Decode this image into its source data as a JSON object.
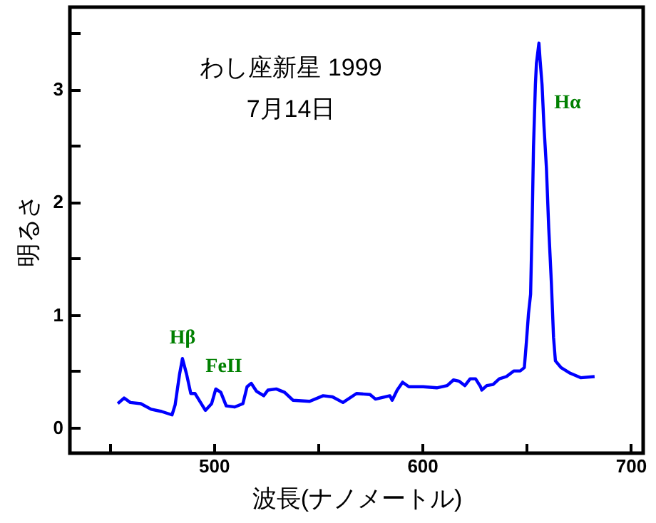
{
  "chart_data": {
    "type": "line",
    "title": "わし座新星 1999",
    "subtitle": "7月14日",
    "xlabel": "波長(ナノメートル)",
    "ylabel": "明るさ",
    "x": [
      454,
      457,
      460,
      465,
      470,
      475,
      480,
      481.5,
      483.6,
      485,
      487,
      489,
      491,
      493,
      496,
      499,
      501,
      503.4,
      506,
      510,
      514,
      516,
      518,
      520.5,
      524,
      526,
      530,
      534,
      538,
      546,
      552.5,
      557,
      562,
      568.5,
      575,
      577.6,
      584.5,
      585.6,
      588,
      590.6,
      593.6,
      600.5,
      607,
      612,
      615,
      617.6,
      620.5,
      623,
      625.6,
      628,
      628.6,
      631,
      634,
      637,
      640.4,
      644,
      647,
      649,
      650,
      651,
      652,
      652.7,
      653.4,
      654.3,
      654.8,
      656,
      656.6,
      657.5,
      658.4,
      659.6,
      660.7,
      662,
      663,
      663.9,
      666.6,
      671,
      676,
      682.7
    ],
    "series": [
      {
        "color": "#0000ff",
        "values": [
          0.21,
          0.26,
          0.22,
          0.21,
          0.16,
          0.14,
          0.11,
          0.2,
          0.47,
          0.61,
          0.47,
          0.3,
          0.3,
          0.24,
          0.15,
          0.21,
          0.34,
          0.31,
          0.19,
          0.18,
          0.21,
          0.36,
          0.39,
          0.32,
          0.28,
          0.33,
          0.34,
          0.31,
          0.24,
          0.23,
          0.28,
          0.27,
          0.22,
          0.3,
          0.29,
          0.25,
          0.28,
          0.24,
          0.33,
          0.4,
          0.36,
          0.36,
          0.35,
          0.37,
          0.42,
          0.41,
          0.37,
          0.43,
          0.43,
          0.36,
          0.33,
          0.37,
          0.38,
          0.43,
          0.45,
          0.5,
          0.5,
          0.53,
          0.76,
          1.01,
          1.18,
          1.77,
          2.49,
          3.04,
          3.23,
          3.41,
          3.25,
          3.04,
          2.68,
          2.3,
          1.77,
          1.27,
          0.8,
          0.59,
          0.53,
          0.48,
          0.44,
          0.45
        ]
      }
    ],
    "xlim": [
      431,
      706
    ],
    "ylim": [
      -0.23,
      3.73
    ],
    "xticks": [
      {
        "value": 450,
        "label": null
      },
      500,
      {
        "value": 550,
        "label": null
      },
      600,
      {
        "value": 650,
        "label": null
      },
      700
    ],
    "yticks": [
      0,
      {
        "value": 0.5,
        "label": null
      },
      1,
      {
        "value": 1.5,
        "label": null
      },
      2,
      {
        "value": 2.5,
        "label": null
      },
      3,
      {
        "value": 3.5,
        "label": null
      }
    ],
    "annotations": [
      "Hβ",
      "FeII",
      "Hα"
    ],
    "grid": false,
    "marker": "none",
    "line_style": "solid"
  }
}
